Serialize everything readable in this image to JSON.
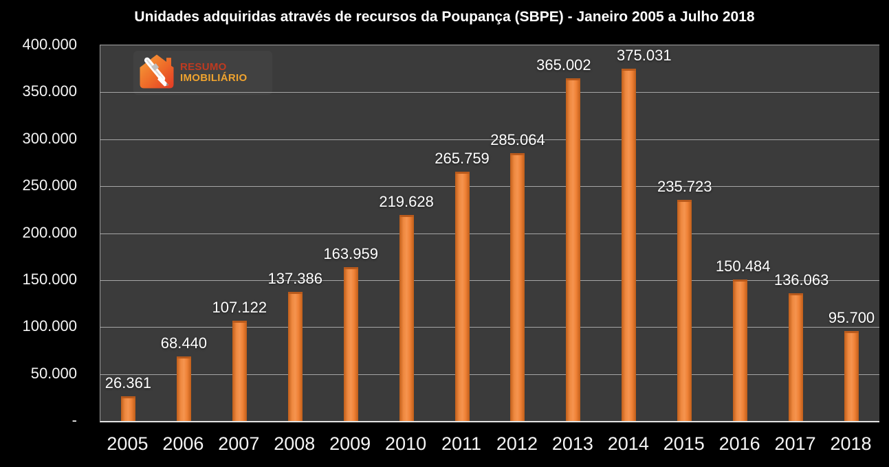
{
  "chart_data": {
    "type": "bar",
    "title": "Unidades adquiridas através de recursos da Poupança (SBPE) - Janeiro 2005 a Julho 2018",
    "categories": [
      "2005",
      "2006",
      "2007",
      "2008",
      "2009",
      "2010",
      "2011",
      "2012",
      "2013",
      "2014",
      "2015",
      "2016",
      "2017",
      "2018"
    ],
    "values": [
      26361,
      68440,
      107122,
      137386,
      163959,
      219628,
      265759,
      285064,
      365002,
      375031,
      235723,
      150484,
      136063,
      95700
    ],
    "value_labels": [
      "26.361",
      "68.440",
      "107.122",
      "137.386",
      "163.959",
      "219.628",
      "265.759",
      "285.064",
      "365.002",
      "375.031",
      "235.723",
      "150.484",
      "136.063",
      "95.700"
    ],
    "y_ticks": [
      "400.000",
      "350.000",
      "300.000",
      "250.000",
      "200.000",
      "150.000",
      "100.000",
      "50.000",
      "-"
    ],
    "ylim": [
      0,
      400000
    ],
    "xlabel": "",
    "ylabel": "",
    "grid": true,
    "legend": "none",
    "label_dx": [
      0,
      0,
      0,
      0,
      0,
      0,
      0,
      0,
      -14,
      22,
      0,
      4,
      8,
      0
    ],
    "colors": {
      "page_bg": "#000000",
      "plot_bg": "#3B3B3B",
      "bar": "#ED7D31",
      "bar_edge": "#B95A1C",
      "gridline": "#A6A6A6",
      "axis_line": "#E4E4E4",
      "text": "#FFFFFF"
    }
  },
  "logo": {
    "line1": "RESUMO",
    "line2": "IMOBILIÁRIO",
    "icon": "house-with-pen-icon",
    "colors": {
      "line1": "#BF3A20",
      "line2": "#EFA32F",
      "house_top": "#F6A13B",
      "house_bottom": "#E23A26",
      "pen": "#FFFFFF"
    }
  }
}
